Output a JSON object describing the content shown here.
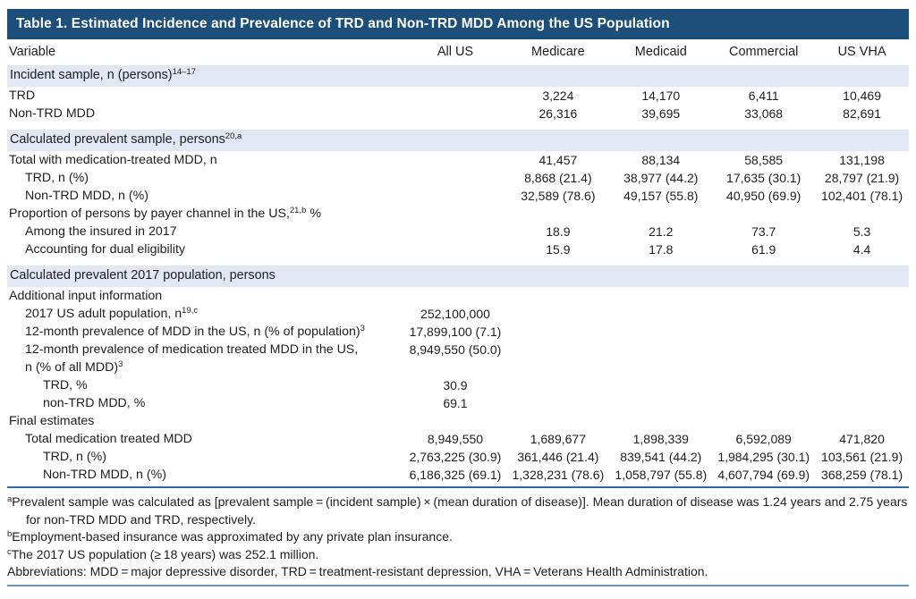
{
  "table": {
    "title": "Table 1. Estimated Incidence and Prevalence of TRD and Non-TRD MDD Among the US Population",
    "columns": [
      "Variable",
      "All US",
      "Medicare",
      "Medicaid",
      "Commercial",
      "US VHA"
    ],
    "rows": [
      {
        "type": "section",
        "label": "Incident sample, n (persons)",
        "sup": "14–17"
      },
      {
        "type": "data",
        "indent": 0,
        "label": "TRD",
        "values": [
          "",
          "3,224",
          "14,170",
          "6,411",
          "10,469"
        ]
      },
      {
        "type": "data",
        "indent": 0,
        "label": "Non-TRD MDD",
        "values": [
          "",
          "26,316",
          "39,695",
          "33,068",
          "82,691"
        ]
      },
      {
        "type": "section",
        "label": "Calculated prevalent sample, persons",
        "sup": "20,a"
      },
      {
        "type": "data",
        "indent": 0,
        "label": "Total with medication-treated MDD, n",
        "values": [
          "",
          "41,457",
          "88,134",
          "58,585",
          "131,198"
        ]
      },
      {
        "type": "data",
        "indent": 1,
        "label": "TRD, n (%)",
        "values": [
          "",
          "8,868 (21.4)",
          "38,977 (44.2)",
          "17,635 (30.1)",
          "28,797 (21.9)"
        ]
      },
      {
        "type": "data",
        "indent": 1,
        "label": "Non-TRD MDD, n (%)",
        "values": [
          "",
          "32,589 (78.6)",
          "49,157 (55.8)",
          "40,950 (69.9)",
          "102,401 (78.1)"
        ]
      },
      {
        "type": "data",
        "indent": 0,
        "label": "Proportion of persons by payer channel in the US,",
        "sup": "21,b",
        "suffix": " %",
        "values": [
          "",
          "",
          "",
          "",
          ""
        ]
      },
      {
        "type": "data",
        "indent": 1,
        "label": "Among the insured in 2017",
        "values": [
          "",
          "18.9",
          "21.2",
          "73.7",
          "5.3"
        ]
      },
      {
        "type": "data",
        "indent": 1,
        "label": "Accounting for dual eligibility",
        "values": [
          "",
          "15.9",
          "17.8",
          "61.9",
          "4.4"
        ]
      },
      {
        "type": "section",
        "label": "Calculated prevalent 2017 population, persons",
        "sup": ""
      },
      {
        "type": "data",
        "indent": 0,
        "label": "Additional input information",
        "values": [
          "",
          "",
          "",
          "",
          ""
        ]
      },
      {
        "type": "data",
        "indent": 1,
        "label": "2017 US adult population, n",
        "sup": "19,c",
        "values": [
          "252,100,000",
          "",
          "",
          "",
          ""
        ]
      },
      {
        "type": "data",
        "indent": 1,
        "label": "12-month prevalence of MDD in the US, n (% of population)",
        "sup": "3",
        "values": [
          "17,899,100 (7.1)",
          "",
          "",
          "",
          ""
        ]
      },
      {
        "type": "data",
        "indent": 1,
        "label": "12-month prevalence of medication treated MDD in the US,",
        "values": [
          "8,949,550 (50.0)",
          "",
          "",
          "",
          ""
        ]
      },
      {
        "type": "data",
        "indent": 1,
        "label": "n (% of all MDD)",
        "sup": "3",
        "values": [
          "",
          "",
          "",
          "",
          ""
        ]
      },
      {
        "type": "data",
        "indent": 2,
        "label": "TRD, %",
        "values": [
          "30.9",
          "",
          "",
          "",
          ""
        ]
      },
      {
        "type": "data",
        "indent": 2,
        "label": "non-TRD MDD, %",
        "values": [
          "69.1",
          "",
          "",
          "",
          ""
        ]
      },
      {
        "type": "data",
        "indent": 0,
        "label": "Final estimates",
        "values": [
          "",
          "",
          "",
          "",
          ""
        ]
      },
      {
        "type": "data",
        "indent": 1,
        "label": "Total medication treated MDD",
        "values": [
          "8,949,550",
          "1,689,677",
          "1,898,339",
          "6,592,089",
          "471,820"
        ]
      },
      {
        "type": "data",
        "indent": 2,
        "label": "TRD, n (%)",
        "values": [
          "2,763,225 (30.9)",
          "361,446 (21.4)",
          "839,541 (44.2)",
          "1,984,295 (30.1)",
          "103,561 (21.9)"
        ]
      },
      {
        "type": "data",
        "indent": 2,
        "label": "Non-TRD MDD, n (%)",
        "values": [
          "6,186,325 (69.1)",
          "1,328,231 (78.6)",
          "1,058,797 (55.8)",
          "4,607,794 (69.9)",
          "368,259 (78.1)"
        ]
      }
    ],
    "footnotes": [
      {
        "sup": "a",
        "text": "Prevalent sample was calculated as [prevalent sample = (incident sample) × (mean duration of disease)]. Mean duration of disease was 1.24 years and 2.75 years for non-TRD MDD and TRD, respectively."
      },
      {
        "sup": "b",
        "text": "Employment-based insurance was approximated by any private plan insurance."
      },
      {
        "sup": "c",
        "text": "The 2017 US population (≥ 18 years) was 252.1 million."
      },
      {
        "sup": "",
        "text": "Abbreviations: MDD = major depressive disorder, TRD = treatment-resistant depression, VHA = Veterans Health Administration."
      }
    ],
    "colors": {
      "title_bar": "#1b4e79",
      "band": "#e3e7f4",
      "rule": "#2f6da6",
      "rule_light": "#6f93b8"
    }
  }
}
